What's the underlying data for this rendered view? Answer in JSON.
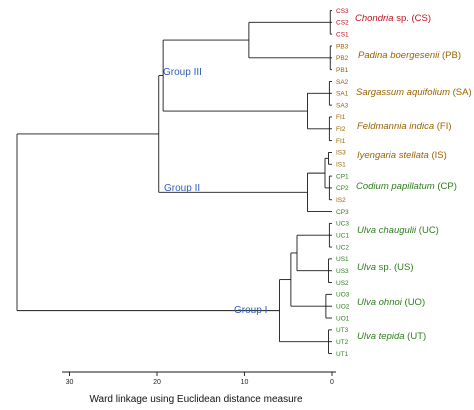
{
  "colors": {
    "dendro_line": "#1a1a1a",
    "group_label": "#2e5cb8",
    "red": "#c0141c",
    "brown": "#9a6200",
    "green": "#2f7d1e"
  },
  "groups": [
    {
      "id": "group3",
      "label": "Group III"
    },
    {
      "id": "group2",
      "label": "Group II"
    },
    {
      "id": "group1",
      "label": "Group I"
    }
  ],
  "leaves": [
    {
      "label": "CS3",
      "color": "red"
    },
    {
      "label": "CS2",
      "color": "red"
    },
    {
      "label": "CS1",
      "color": "red"
    },
    {
      "label": "PB3",
      "color": "brown"
    },
    {
      "label": "PB2",
      "color": "brown"
    },
    {
      "label": "PB1",
      "color": "brown"
    },
    {
      "label": "SA2",
      "color": "brown"
    },
    {
      "label": "SA1",
      "color": "brown"
    },
    {
      "label": "SA3",
      "color": "brown"
    },
    {
      "label": "FI1",
      "color": "brown"
    },
    {
      "label": "FI2",
      "color": "brown"
    },
    {
      "label": "FI1",
      "color": "brown"
    },
    {
      "label": "IS3",
      "color": "brown"
    },
    {
      "label": "IS1",
      "color": "brown"
    },
    {
      "label": "CP1",
      "color": "green"
    },
    {
      "label": "CP2",
      "color": "green"
    },
    {
      "label": "IS2",
      "color": "brown"
    },
    {
      "label": "CP3",
      "color": "green"
    },
    {
      "label": "UC3",
      "color": "green"
    },
    {
      "label": "UC1",
      "color": "green"
    },
    {
      "label": "UC2",
      "color": "green"
    },
    {
      "label": "US1",
      "color": "green"
    },
    {
      "label": "US3",
      "color": "green"
    },
    {
      "label": "US2",
      "color": "green"
    },
    {
      "label": "UO3",
      "color": "green"
    },
    {
      "label": "UO2",
      "color": "green"
    },
    {
      "label": "UO1",
      "color": "green"
    },
    {
      "label": "UT3",
      "color": "green"
    },
    {
      "label": "UT2",
      "color": "green"
    },
    {
      "label": "UT1",
      "color": "green"
    }
  ],
  "clusters": [
    {
      "species": "Chondria",
      "suffix": " sp. (CS)",
      "color": "red"
    },
    {
      "species": "Padina boergesenii",
      "suffix": " (PB)",
      "color": "brown"
    },
    {
      "species": "Sargassum aquifolium",
      "suffix": " (SA)",
      "color": "brown"
    },
    {
      "species": "Feldmannia indica",
      "suffix": " (FI)",
      "color": "brown"
    },
    {
      "species": "Iyengaria stellata",
      "suffix": " (IS)",
      "color": "brown"
    },
    {
      "species": "Codium papillatum",
      "suffix": " (CP)",
      "color": "green"
    },
    {
      "species": "Ulva chaugulii",
      "suffix": "  (UC)",
      "color": "green"
    },
    {
      "species": "Ulva",
      "suffix": " sp. (US)",
      "color": "green"
    },
    {
      "species": "Ulva ohnoi",
      "suffix": " (UO)",
      "color": "green"
    },
    {
      "species": "Ulva tepida",
      "suffix": " (UT)",
      "color": "green"
    }
  ],
  "axis": {
    "ticks": [
      "30",
      "20",
      "10",
      "0"
    ],
    "tick_values": [
      30,
      20,
      10,
      0
    ],
    "label": "Ward linkage using Euclidean distance measure",
    "range": [
      0,
      30
    ],
    "reversed": true
  },
  "tree": {
    "description_units": "Ward linkage distance",
    "merges": [
      {
        "id": "cs",
        "children": [
          "L0",
          "L1",
          "L2"
        ],
        "height": 0.2
      },
      {
        "id": "pb",
        "children": [
          "L3",
          "L4",
          "L5"
        ],
        "height": 0.2
      },
      {
        "id": "sa",
        "children": [
          "L6",
          "L7",
          "L8"
        ],
        "height": 0.3
      },
      {
        "id": "fi",
        "children": [
          "L9",
          "L10",
          "L11"
        ],
        "height": 0.3
      },
      {
        "id": "cspb",
        "children": [
          "cs",
          "pb"
        ],
        "height": 9.5
      },
      {
        "id": "safi",
        "children": [
          "sa",
          "fi"
        ],
        "height": 2.8
      },
      {
        "id": "g3",
        "children": [
          "cspb",
          "safi"
        ],
        "height": 19.3
      },
      {
        "id": "isA",
        "children": [
          "L12",
          "L13"
        ],
        "height": 0.4
      },
      {
        "id": "cpA",
        "children": [
          "L14",
          "L15",
          "L16"
        ],
        "height": 0.3
      },
      {
        "id": "isCp",
        "children": [
          "isA",
          "cpA"
        ],
        "height": 0.8
      },
      {
        "id": "g2a",
        "children": [
          "isCp",
          "L17"
        ],
        "height": 2.8
      },
      {
        "id": "g23",
        "children": [
          "g3",
          "g2a"
        ],
        "height": 19.8
      },
      {
        "id": "uc",
        "children": [
          "L18",
          "L19",
          "L20"
        ],
        "height": 0.3
      },
      {
        "id": "us",
        "children": [
          "L21",
          "L22",
          "L23"
        ],
        "height": 0.4
      },
      {
        "id": "ucus",
        "children": [
          "uc",
          "us"
        ],
        "height": 4.0
      },
      {
        "id": "uo",
        "children": [
          "L24",
          "L25",
          "L26"
        ],
        "height": 0.7
      },
      {
        "id": "ucuo",
        "children": [
          "ucus",
          "uo"
        ],
        "height": 4.7
      },
      {
        "id": "ut",
        "children": [
          "L27",
          "L28",
          "L29"
        ],
        "height": 0.4
      },
      {
        "id": "g1",
        "children": [
          "ucuo",
          "ut"
        ],
        "height": 6.0
      },
      {
        "id": "root",
        "children": [
          "g23",
          "g1"
        ],
        "height": 36.0
      }
    ]
  }
}
